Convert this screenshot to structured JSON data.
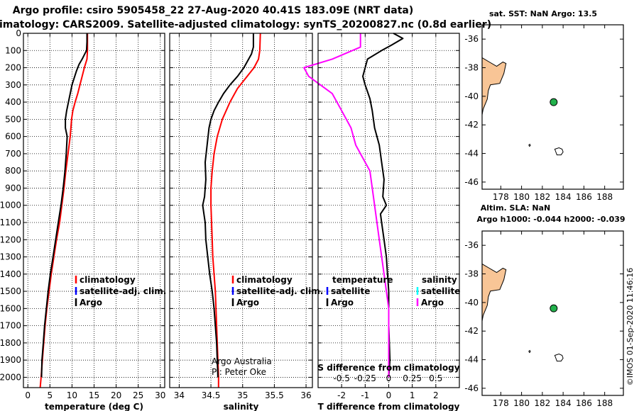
{
  "title_line1": "Argo profile: csiro 5905458_22 27-Aug-2020 40.41S 183.09E (NRT data)",
  "title_line2": "Climatology: CARS2009. Satellite-adjusted climatology: synTS_20200827.nc (0.8d earlier)",
  "credit": "©IMOS 01-Sep-2020 11:46:16",
  "colors": {
    "argo": "#000000",
    "climatology": "#ff0000",
    "satellite_adj": "#0000ff",
    "t_satellite": "#0000ff",
    "s_satellite": "#00ffff",
    "s_argo": "#ff00ff",
    "land": "#f8c596",
    "float": "#22b14c"
  },
  "chart_data": [
    {
      "type": "line",
      "name": "temperature-profile",
      "xlabel": "temperature (deg C)",
      "ylabel": "depth",
      "xlim": [
        -1,
        31
      ],
      "ylim": [
        2060,
        0
      ],
      "xticks": [
        0,
        5,
        10,
        15,
        20,
        25,
        30
      ],
      "yticks": [
        0,
        100,
        200,
        300,
        400,
        500,
        600,
        700,
        800,
        900,
        1000,
        1100,
        1200,
        1300,
        1400,
        1500,
        1600,
        1700,
        1800,
        1900,
        2000
      ],
      "grid": true,
      "legend": [
        "climatology",
        "satellite-adj. clim.",
        "Argo"
      ],
      "series": [
        {
          "name": "climatology",
          "points": [
            [
              13.5,
              0
            ],
            [
              13.5,
              100
            ],
            [
              13.4,
              150
            ],
            [
              12.8,
              200
            ],
            [
              12.3,
              250
            ],
            [
              11.8,
              300
            ],
            [
              11.3,
              350
            ],
            [
              10.7,
              400
            ],
            [
              10.2,
              450
            ],
            [
              9.9,
              500
            ],
            [
              9.6,
              600
            ],
            [
              9.1,
              700
            ],
            [
              8.6,
              800
            ],
            [
              8.2,
              900
            ],
            [
              7.7,
              1000
            ],
            [
              7.2,
              1100
            ],
            [
              6.5,
              1200
            ],
            [
              5.9,
              1300
            ],
            [
              5.3,
              1400
            ],
            [
              4.8,
              1500
            ],
            [
              4.3,
              1600
            ],
            [
              3.9,
              1700
            ],
            [
              3.6,
              1800
            ],
            [
              3.3,
              1900
            ],
            [
              3.0,
              2000
            ],
            [
              2.8,
              2060
            ]
          ]
        },
        {
          "name": "Argo",
          "points": [
            [
              13.4,
              0
            ],
            [
              13.4,
              50
            ],
            [
              13.3,
              100
            ],
            [
              12.9,
              120
            ],
            [
              12.3,
              150
            ],
            [
              11.6,
              180
            ],
            [
              11.0,
              220
            ],
            [
              10.5,
              260
            ],
            [
              10.0,
              300
            ],
            [
              9.6,
              350
            ],
            [
              9.2,
              400
            ],
            [
              8.8,
              450
            ],
            [
              8.5,
              500
            ],
            [
              8.5,
              550
            ],
            [
              8.9,
              600
            ],
            [
              8.7,
              700
            ],
            [
              8.4,
              800
            ],
            [
              8.0,
              900
            ],
            [
              7.5,
              1000
            ],
            [
              6.9,
              1100
            ],
            [
              6.3,
              1200
            ],
            [
              5.7,
              1300
            ],
            [
              5.1,
              1400
            ],
            [
              4.6,
              1500
            ],
            [
              4.2,
              1600
            ],
            [
              3.8,
              1700
            ],
            [
              3.5,
              1800
            ],
            [
              3.2,
              1900
            ],
            [
              3.1,
              2000
            ]
          ]
        }
      ]
    },
    {
      "type": "line",
      "name": "salinity-profile",
      "xlabel": "salinity",
      "ylabel": "depth",
      "xlim": [
        33.85,
        36.1
      ],
      "ylim": [
        2060,
        0
      ],
      "xticks": [
        34,
        34.5,
        35,
        35.5,
        36
      ],
      "xticklabels": [
        "34",
        "34.5",
        "35",
        "35.5",
        "36"
      ],
      "yticks": [
        0,
        100,
        200,
        300,
        400,
        500,
        600,
        700,
        800,
        900,
        1000,
        1100,
        1200,
        1300,
        1400,
        1500,
        1600,
        1700,
        1800,
        1900,
        2000
      ],
      "grid": true,
      "legend": [
        "climatology",
        "satellite-adj. clim.",
        "Argo"
      ],
      "annotation": [
        "Argo Australia",
        "PI: Peter Oke"
      ],
      "series": [
        {
          "name": "climatology",
          "points": [
            [
              35.28,
              0
            ],
            [
              35.27,
              100
            ],
            [
              35.25,
              150
            ],
            [
              35.18,
              200
            ],
            [
              35.05,
              260
            ],
            [
              34.92,
              320
            ],
            [
              34.8,
              400
            ],
            [
              34.68,
              500
            ],
            [
              34.6,
              600
            ],
            [
              34.55,
              700
            ],
            [
              34.52,
              800
            ],
            [
              34.5,
              900
            ],
            [
              34.5,
              1000
            ],
            [
              34.51,
              1100
            ],
            [
              34.52,
              1200
            ],
            [
              34.53,
              1300
            ],
            [
              34.55,
              1400
            ],
            [
              34.57,
              1500
            ],
            [
              34.58,
              1600
            ],
            [
              34.59,
              1700
            ],
            [
              34.6,
              1800
            ],
            [
              34.61,
              1900
            ],
            [
              34.62,
              2000
            ],
            [
              34.62,
              2060
            ]
          ]
        },
        {
          "name": "Argo",
          "points": [
            [
              35.17,
              0
            ],
            [
              35.17,
              80
            ],
            [
              35.14,
              120
            ],
            [
              35.02,
              200
            ],
            [
              34.92,
              250
            ],
            [
              34.8,
              300
            ],
            [
              34.7,
              350
            ],
            [
              34.62,
              400
            ],
            [
              34.55,
              450
            ],
            [
              34.5,
              500
            ],
            [
              34.47,
              550
            ],
            [
              34.44,
              650
            ],
            [
              34.41,
              750
            ],
            [
              34.42,
              850
            ],
            [
              34.4,
              950
            ],
            [
              34.37,
              1000
            ],
            [
              34.39,
              1050
            ],
            [
              34.41,
              1100
            ],
            [
              34.42,
              1200
            ],
            [
              34.45,
              1300
            ],
            [
              34.48,
              1400
            ],
            [
              34.52,
              1500
            ],
            [
              34.55,
              1600
            ],
            [
              34.57,
              1700
            ],
            [
              34.59,
              1800
            ],
            [
              34.6,
              1900
            ],
            [
              34.61,
              2000
            ]
          ]
        }
      ]
    },
    {
      "type": "line",
      "name": "difference-profile",
      "xlabel": "T difference from climatology",
      "ylabel": "depth",
      "xlim": [
        -3.0,
        3.0
      ],
      "ylim": [
        2060,
        0
      ],
      "xticks": [
        -2,
        -1,
        0,
        1,
        2
      ],
      "yticks": [
        0,
        100,
        200,
        300,
        400,
        500,
        600,
        700,
        800,
        900,
        1000,
        1100,
        1200,
        1300,
        1400,
        1500,
        1600,
        1700,
        1800,
        1900,
        2000
      ],
      "grid": true,
      "legend_t_title": "temperature",
      "legend_s_title": "salinity",
      "legend": [
        "satellite",
        "Argo",
        "satellite",
        "Argo"
      ],
      "s_axis_title": "S difference from climatology",
      "s_ticks": [
        -0.5,
        -0.25,
        0,
        0.25,
        0.5
      ],
      "s_ticklabels": [
        "-0.5",
        "-0.25",
        "0",
        "0.25",
        "0.5"
      ],
      "series": [
        {
          "name": "T difference (Argo)",
          "points": [
            [
              0.2,
              0
            ],
            [
              0.6,
              30
            ],
            [
              0.1,
              70
            ],
            [
              -0.3,
              100
            ],
            [
              -0.9,
              150
            ],
            [
              -1.1,
              250
            ],
            [
              -1.0,
              300
            ],
            [
              -0.8,
              380
            ],
            [
              -0.7,
              450
            ],
            [
              -0.6,
              550
            ],
            [
              -0.4,
              650
            ],
            [
              -0.3,
              750
            ],
            [
              -0.2,
              850
            ],
            [
              -0.25,
              950
            ],
            [
              -0.1,
              1000
            ],
            [
              -0.35,
              1050
            ],
            [
              -0.3,
              1100
            ],
            [
              -0.2,
              1200
            ],
            [
              -0.1,
              1300
            ],
            [
              -0.05,
              1400
            ],
            [
              0.0,
              1500
            ],
            [
              0.0,
              1700
            ],
            [
              0.05,
              1900
            ],
            [
              0.0,
              2000
            ]
          ]
        },
        {
          "name": "S difference (Argo)",
          "points": [
            [
              -0.3,
              0
            ],
            [
              -0.3,
              80
            ],
            [
              -0.6,
              150
            ],
            [
              -0.9,
              200
            ],
            [
              -0.85,
              250
            ],
            [
              -0.6,
              350
            ],
            [
              -0.5,
              450
            ],
            [
              -0.4,
              550
            ],
            [
              -0.35,
              650
            ],
            [
              -0.2,
              800
            ],
            [
              -0.15,
              1000
            ],
            [
              -0.1,
              1200
            ],
            [
              -0.05,
              1400
            ],
            [
              0.0,
              1600
            ],
            [
              0.0,
              1800
            ],
            [
              0.0,
              2000
            ]
          ]
        }
      ]
    },
    {
      "type": "scatter",
      "name": "location-map-sst",
      "title": "sat. SST: NaN Argo: 13.5",
      "xlim": [
        176.2,
        189.8
      ],
      "ylim": [
        -46.5,
        -35
      ],
      "xticks": [
        178,
        180,
        182,
        184,
        186,
        188
      ],
      "yticks": [
        -36,
        -38,
        -40,
        -42,
        -44,
        -46
      ],
      "points": [
        [
          183.09,
          -40.41
        ]
      ]
    },
    {
      "type": "scatter",
      "name": "location-map-sla",
      "title": "Altim. SLA: NaN",
      "subtitle": "Argo h1000: -0.044 h2000: -0.039",
      "xlim": [
        176.2,
        189.8
      ],
      "ylim": [
        -46.5,
        -35
      ],
      "xticks": [
        178,
        180,
        182,
        184,
        186,
        188
      ],
      "yticks": [
        -36,
        -38,
        -40,
        -42,
        -44,
        -46
      ],
      "points": [
        [
          183.09,
          -40.41
        ]
      ]
    }
  ]
}
